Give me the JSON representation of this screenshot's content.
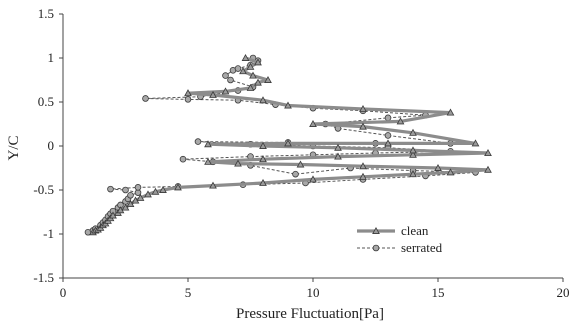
{
  "chart_data": {
    "type": "scatter",
    "xlabel": "Pressure Fluctuation[Pa]",
    "ylabel": "Y/C",
    "xlim": [
      0,
      20
    ],
    "ylim": [
      -1.5,
      1.5
    ],
    "xticks": [
      "0",
      "5",
      "10",
      "15",
      "20"
    ],
    "yticks": [
      "-1.5",
      "-1",
      "-0.5",
      "0",
      "0.5",
      "1",
      "1.5"
    ],
    "grid": false,
    "legend_position": "bottom-right",
    "series": [
      {
        "name": "clean",
        "marker": "triangle",
        "line_style": "solid",
        "color": "#8c8c8c",
        "points": [
          [
            1.2,
            -0.98
          ],
          [
            1.3,
            -0.96
          ],
          [
            1.4,
            -0.95
          ],
          [
            1.5,
            -0.93
          ],
          [
            1.6,
            -0.9
          ],
          [
            1.7,
            -0.88
          ],
          [
            1.8,
            -0.85
          ],
          [
            1.9,
            -0.82
          ],
          [
            2.0,
            -0.79
          ],
          [
            2.2,
            -0.76
          ],
          [
            2.3,
            -0.73
          ],
          [
            2.5,
            -0.7
          ],
          [
            2.7,
            -0.66
          ],
          [
            2.9,
            -0.62
          ],
          [
            3.1,
            -0.59
          ],
          [
            3.4,
            -0.55
          ],
          [
            3.7,
            -0.52
          ],
          [
            4.0,
            -0.5
          ],
          [
            4.6,
            -0.47
          ],
          [
            6.0,
            -0.45
          ],
          [
            8.0,
            -0.42
          ],
          [
            10.0,
            -0.38
          ],
          [
            12.0,
            -0.35
          ],
          [
            14.0,
            -0.32
          ],
          [
            15.5,
            -0.3
          ],
          [
            17.0,
            -0.27
          ],
          [
            15.0,
            -0.25
          ],
          [
            12.0,
            -0.23
          ],
          [
            9.5,
            -0.21
          ],
          [
            7.0,
            -0.2
          ],
          [
            5.8,
            -0.18
          ],
          [
            8.0,
            -0.15
          ],
          [
            11.0,
            -0.12
          ],
          [
            14.0,
            -0.1
          ],
          [
            17.0,
            -0.08
          ],
          [
            14.0,
            -0.05
          ],
          [
            11.0,
            -0.02
          ],
          [
            8.0,
            0.0
          ],
          [
            5.8,
            0.02
          ],
          [
            9.0,
            0.03
          ],
          [
            13.0,
            0.03
          ],
          [
            16.5,
            0.03
          ],
          [
            14.0,
            0.15
          ],
          [
            12.0,
            0.22
          ],
          [
            10.0,
            0.25
          ],
          [
            13.5,
            0.28
          ],
          [
            15.5,
            0.38
          ],
          [
            12.0,
            0.42
          ],
          [
            9.0,
            0.46
          ],
          [
            8.0,
            0.52
          ],
          [
            6.0,
            0.58
          ],
          [
            5.0,
            0.6
          ],
          [
            6.5,
            0.62
          ],
          [
            7.5,
            0.66
          ],
          [
            7.8,
            0.72
          ],
          [
            8.2,
            0.75
          ],
          [
            7.6,
            0.8
          ],
          [
            7.2,
            0.85
          ],
          [
            7.5,
            0.9
          ],
          [
            7.8,
            0.95
          ],
          [
            7.3,
            1.0
          ]
        ]
      },
      {
        "name": "serrated",
        "marker": "circle",
        "line_style": "dashed",
        "color": "#8c8c8c",
        "points": [
          [
            1.0,
            -0.98
          ],
          [
            1.2,
            -0.96
          ],
          [
            1.3,
            -0.94
          ],
          [
            1.5,
            -0.9
          ],
          [
            1.6,
            -0.87
          ],
          [
            1.7,
            -0.84
          ],
          [
            1.8,
            -0.8
          ],
          [
            1.9,
            -0.77
          ],
          [
            2.0,
            -0.74
          ],
          [
            2.2,
            -0.7
          ],
          [
            2.3,
            -0.67
          ],
          [
            2.5,
            -0.63
          ],
          [
            2.6,
            -0.6
          ],
          [
            2.7,
            -0.56
          ],
          [
            3.0,
            -0.53
          ],
          [
            2.5,
            -0.5
          ],
          [
            1.9,
            -0.49
          ],
          [
            3.0,
            -0.47
          ],
          [
            4.6,
            -0.46
          ],
          [
            7.2,
            -0.44
          ],
          [
            9.7,
            -0.42
          ],
          [
            12.0,
            -0.38
          ],
          [
            14.5,
            -0.34
          ],
          [
            16.5,
            -0.3
          ],
          [
            14.0,
            -0.28
          ],
          [
            11.5,
            -0.25
          ],
          [
            9.3,
            -0.32
          ],
          [
            7.5,
            -0.22
          ],
          [
            6.0,
            -0.18
          ],
          [
            4.8,
            -0.15
          ],
          [
            7.5,
            -0.12
          ],
          [
            10.0,
            -0.1
          ],
          [
            12.5,
            -0.08
          ],
          [
            15.5,
            -0.06
          ],
          [
            13.0,
            -0.02
          ],
          [
            10.0,
            0.0
          ],
          [
            7.5,
            0.02
          ],
          [
            5.4,
            0.05
          ],
          [
            9.0,
            0.04
          ],
          [
            12.5,
            0.03
          ],
          [
            15.5,
            0.03
          ],
          [
            13.0,
            0.12
          ],
          [
            11.0,
            0.2
          ],
          [
            10.5,
            0.25
          ],
          [
            13.0,
            0.32
          ],
          [
            14.5,
            0.35
          ],
          [
            12.0,
            0.4
          ],
          [
            10.0,
            0.43
          ],
          [
            8.5,
            0.47
          ],
          [
            7.0,
            0.52
          ],
          [
            5.0,
            0.53
          ],
          [
            3.3,
            0.54
          ],
          [
            5.5,
            0.56
          ],
          [
            7.0,
            0.63
          ],
          [
            7.6,
            0.67
          ],
          [
            6.7,
            0.75
          ],
          [
            6.5,
            0.8
          ],
          [
            6.8,
            0.86
          ],
          [
            7.0,
            0.88
          ],
          [
            7.5,
            0.92
          ],
          [
            7.8,
            0.97
          ],
          [
            7.6,
            1.0
          ]
        ]
      }
    ]
  }
}
